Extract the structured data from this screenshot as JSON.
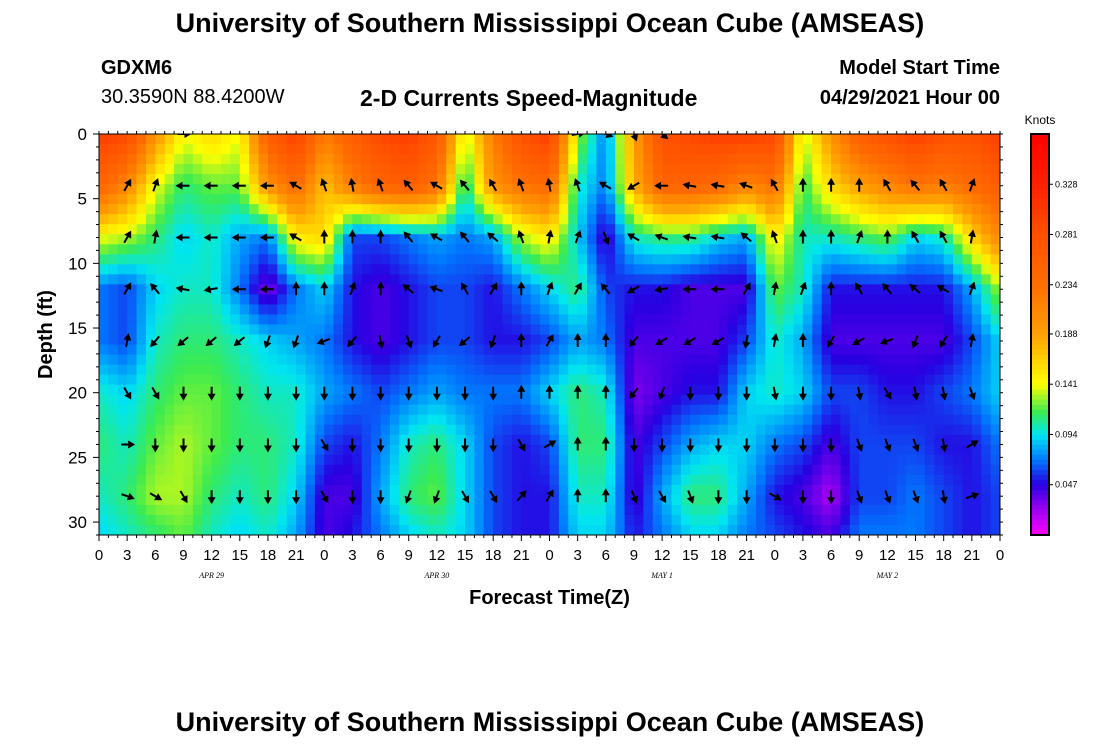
{
  "header": {
    "title": "University of Southern Mississippi Ocean Cube (AMSEAS)",
    "station": "GDXM6",
    "coords": "30.3590N  88.4200W",
    "subtitle": "2-D Currents Speed-Magnitude",
    "model_start_label": "Model Start Time",
    "model_start_value": "04/29/2021 Hour 00"
  },
  "footer": {
    "title": "University of Southern Mississippi Ocean Cube (AMSEAS)"
  },
  "chart_data": {
    "type": "heatmap",
    "title": "2-D Currents Speed-Magnitude",
    "xlabel": "Forecast Time(Z)",
    "ylabel": "Depth (ft)",
    "x_ticks": [
      "0",
      "3",
      "6",
      "9",
      "12",
      "15",
      "18",
      "21",
      "0",
      "3",
      "6",
      "9",
      "12",
      "15",
      "18",
      "21",
      "0",
      "3",
      "6",
      "9",
      "12",
      "15",
      "18",
      "21",
      "0",
      "3",
      "6",
      "9",
      "12",
      "15",
      "18",
      "21",
      "0"
    ],
    "date_labels": [
      "APR 29",
      "APR 30",
      "MAY 1",
      "MAY 2"
    ],
    "y_ticks": [
      0,
      5,
      10,
      15,
      20,
      25,
      30
    ],
    "ylim": [
      31,
      0
    ],
    "xlim_hours": [
      0,
      96
    ],
    "colorbar": {
      "unit": "Knots",
      "tick_labels": [
        "0.328",
        "0.281",
        "0.234",
        "0.188",
        "0.141",
        "0.094",
        "0.047"
      ],
      "range": [
        0.0,
        0.375
      ]
    },
    "grid": false,
    "hours": [
      0,
      3,
      6,
      9,
      12,
      15,
      18,
      21,
      24,
      27,
      30,
      33,
      36,
      39,
      42,
      45,
      48,
      51,
      54,
      57,
      60,
      63,
      66,
      69,
      72,
      75,
      78,
      81,
      84,
      87,
      90,
      93,
      96
    ],
    "depths": [
      0,
      4,
      8,
      12,
      16,
      20,
      24,
      28,
      31
    ],
    "speed_knots": [
      [
        0.3,
        0.29,
        0.2,
        0.14,
        0.16,
        0.14,
        0.26,
        0.3,
        0.22,
        0.26,
        0.29,
        0.3,
        0.27,
        0.13,
        0.22,
        0.28,
        0.3,
        0.13,
        0.07,
        0.19,
        0.28,
        0.29,
        0.3,
        0.3,
        0.29,
        0.13,
        0.2,
        0.26,
        0.28,
        0.3,
        0.28,
        0.28,
        0.3
      ],
      [
        0.25,
        0.21,
        0.14,
        0.11,
        0.12,
        0.12,
        0.2,
        0.24,
        0.17,
        0.22,
        0.25,
        0.26,
        0.23,
        0.1,
        0.2,
        0.23,
        0.24,
        0.1,
        0.07,
        0.18,
        0.25,
        0.25,
        0.24,
        0.21,
        0.23,
        0.11,
        0.16,
        0.19,
        0.21,
        0.23,
        0.22,
        0.24,
        0.26
      ],
      [
        0.14,
        0.13,
        0.11,
        0.09,
        0.1,
        0.08,
        0.07,
        0.15,
        0.16,
        0.06,
        0.06,
        0.07,
        0.08,
        0.07,
        0.08,
        0.13,
        0.15,
        0.09,
        0.04,
        0.1,
        0.11,
        0.11,
        0.09,
        0.08,
        0.15,
        0.1,
        0.1,
        0.11,
        0.12,
        0.09,
        0.1,
        0.16,
        0.21
      ],
      [
        0.07,
        0.06,
        0.09,
        0.1,
        0.1,
        0.07,
        0.03,
        0.07,
        0.09,
        0.05,
        0.04,
        0.05,
        0.06,
        0.06,
        0.05,
        0.07,
        0.09,
        0.11,
        0.06,
        0.05,
        0.05,
        0.04,
        0.04,
        0.04,
        0.12,
        0.1,
        0.05,
        0.05,
        0.05,
        0.05,
        0.05,
        0.08,
        0.13
      ],
      [
        0.07,
        0.06,
        0.1,
        0.11,
        0.11,
        0.1,
        0.09,
        0.08,
        0.07,
        0.05,
        0.04,
        0.05,
        0.06,
        0.06,
        0.05,
        0.05,
        0.06,
        0.08,
        0.07,
        0.04,
        0.04,
        0.04,
        0.04,
        0.06,
        0.1,
        0.08,
        0.04,
        0.04,
        0.04,
        0.04,
        0.04,
        0.06,
        0.09
      ],
      [
        0.1,
        0.09,
        0.11,
        0.12,
        0.12,
        0.11,
        0.1,
        0.1,
        0.08,
        0.07,
        0.06,
        0.07,
        0.08,
        0.07,
        0.07,
        0.07,
        0.09,
        0.11,
        0.1,
        0.03,
        0.04,
        0.05,
        0.05,
        0.09,
        0.1,
        0.09,
        0.06,
        0.06,
        0.05,
        0.05,
        0.06,
        0.07,
        0.09
      ],
      [
        0.11,
        0.1,
        0.12,
        0.13,
        0.12,
        0.11,
        0.11,
        0.1,
        0.06,
        0.05,
        0.07,
        0.1,
        0.11,
        0.09,
        0.06,
        0.05,
        0.06,
        0.11,
        0.11,
        0.04,
        0.06,
        0.08,
        0.09,
        0.09,
        0.07,
        0.06,
        0.04,
        0.06,
        0.06,
        0.06,
        0.05,
        0.05,
        0.07
      ],
      [
        0.1,
        0.11,
        0.13,
        0.13,
        0.11,
        0.1,
        0.11,
        0.09,
        0.04,
        0.04,
        0.08,
        0.11,
        0.12,
        0.09,
        0.06,
        0.05,
        0.05,
        0.1,
        0.1,
        0.04,
        0.08,
        0.11,
        0.11,
        0.08,
        0.05,
        0.04,
        0.02,
        0.06,
        0.06,
        0.07,
        0.06,
        0.05,
        0.06
      ],
      [
        0.09,
        0.1,
        0.11,
        0.12,
        0.1,
        0.09,
        0.1,
        0.08,
        0.04,
        0.05,
        0.07,
        0.09,
        0.1,
        0.09,
        0.06,
        0.05,
        0.05,
        0.09,
        0.09,
        0.05,
        0.07,
        0.09,
        0.09,
        0.07,
        0.06,
        0.05,
        0.04,
        0.07,
        0.07,
        0.07,
        0.06,
        0.05,
        0.06
      ]
    ],
    "arrow_depths": [
      0,
      4,
      8,
      12,
      16,
      20,
      24,
      28
    ],
    "arrow_direction_deg": [
      [
        null,
        null,
        null,
        90,
        null,
        null,
        null,
        null,
        null,
        null,
        null,
        null,
        null,
        null,
        null,
        null,
        null,
        80,
        110,
        160,
        130,
        null,
        null,
        null,
        null,
        null,
        null,
        null,
        null,
        null,
        null,
        null,
        null
      ],
      [
        null,
        30,
        20,
        270,
        270,
        270,
        270,
        300,
        340,
        350,
        340,
        320,
        300,
        320,
        330,
        340,
        350,
        340,
        300,
        240,
        270,
        280,
        280,
        290,
        330,
        0,
        0,
        0,
        330,
        320,
        330,
        20,
        null
      ],
      [
        null,
        30,
        10,
        270,
        270,
        270,
        270,
        300,
        0,
        0,
        0,
        320,
        300,
        320,
        310,
        340,
        10,
        20,
        160,
        300,
        290,
        280,
        280,
        310,
        340,
        0,
        0,
        20,
        0,
        330,
        330,
        10,
        null
      ],
      [
        null,
        30,
        320,
        280,
        260,
        270,
        270,
        0,
        0,
        20,
        0,
        310,
        290,
        330,
        30,
        0,
        20,
        30,
        320,
        240,
        260,
        270,
        270,
        30,
        10,
        20,
        0,
        330,
        320,
        310,
        300,
        20,
        null
      ],
      [
        null,
        10,
        220,
        230,
        230,
        230,
        200,
        200,
        250,
        220,
        170,
        160,
        210,
        230,
        200,
        0,
        30,
        0,
        0,
        220,
        240,
        240,
        240,
        190,
        10,
        0,
        210,
        240,
        250,
        200,
        210,
        10,
        null
      ],
      [
        null,
        150,
        150,
        180,
        180,
        180,
        180,
        180,
        180,
        180,
        180,
        180,
        180,
        180,
        180,
        0,
        0,
        0,
        0,
        220,
        200,
        180,
        180,
        180,
        170,
        180,
        180,
        170,
        150,
        170,
        170,
        160,
        null
      ],
      [
        null,
        90,
        180,
        180,
        180,
        180,
        180,
        180,
        150,
        180,
        180,
        180,
        180,
        180,
        180,
        150,
        60,
        0,
        0,
        180,
        180,
        180,
        180,
        180,
        180,
        180,
        180,
        160,
        160,
        160,
        170,
        60,
        null
      ],
      [
        null,
        110,
        120,
        150,
        180,
        180,
        180,
        180,
        150,
        180,
        180,
        200,
        200,
        150,
        150,
        40,
        30,
        0,
        0,
        160,
        150,
        160,
        180,
        180,
        120,
        180,
        180,
        160,
        160,
        160,
        170,
        70,
        null
      ]
    ]
  }
}
